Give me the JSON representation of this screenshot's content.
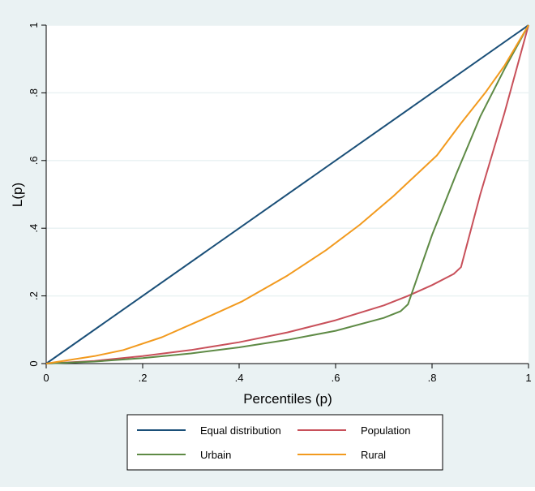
{
  "chart_data": {
    "type": "line",
    "title": "",
    "xlabel": "Percentiles (p)",
    "ylabel": "L(p)",
    "xlim": [
      0,
      1
    ],
    "ylim": [
      0,
      1
    ],
    "x_ticks": [
      0,
      0.2,
      0.4,
      0.6,
      0.8,
      1
    ],
    "x_tick_labels": [
      "0",
      ".2",
      ".4",
      ".6",
      ".8",
      "1"
    ],
    "y_ticks": [
      0,
      0.2,
      0.4,
      0.6,
      0.8,
      1
    ],
    "y_tick_labels": [
      "0",
      ".2",
      ".4",
      ".6",
      ".8",
      "1"
    ],
    "grid": true,
    "legend_position": "bottom",
    "series": [
      {
        "name": "Equal distribution",
        "color": "#1a4f78",
        "points": [
          [
            0,
            0
          ],
          [
            1,
            1
          ]
        ]
      },
      {
        "name": "Population",
        "color": "#c8505a",
        "points": [
          [
            0,
            0
          ],
          [
            0.1,
            0.008
          ],
          [
            0.2,
            0.022
          ],
          [
            0.3,
            0.04
          ],
          [
            0.4,
            0.063
          ],
          [
            0.5,
            0.092
          ],
          [
            0.6,
            0.128
          ],
          [
            0.7,
            0.172
          ],
          [
            0.75,
            0.2
          ],
          [
            0.8,
            0.232
          ],
          [
            0.845,
            0.265
          ],
          [
            0.86,
            0.285
          ],
          [
            0.9,
            0.5
          ],
          [
            0.95,
            0.74
          ],
          [
            1,
            1
          ]
        ]
      },
      {
        "name": "Urbain",
        "color": "#5e8a45",
        "points": [
          [
            0,
            0
          ],
          [
            0.1,
            0.006
          ],
          [
            0.2,
            0.016
          ],
          [
            0.3,
            0.03
          ],
          [
            0.4,
            0.048
          ],
          [
            0.5,
            0.07
          ],
          [
            0.6,
            0.097
          ],
          [
            0.7,
            0.135
          ],
          [
            0.735,
            0.155
          ],
          [
            0.75,
            0.175
          ],
          [
            0.8,
            0.38
          ],
          [
            0.85,
            0.56
          ],
          [
            0.9,
            0.73
          ],
          [
            0.95,
            0.87
          ],
          [
            1,
            1
          ]
        ]
      },
      {
        "name": "Rural",
        "color": "#f29a1e",
        "points": [
          [
            0,
            0
          ],
          [
            0.1,
            0.022
          ],
          [
            0.16,
            0.04
          ],
          [
            0.24,
            0.078
          ],
          [
            0.32,
            0.128
          ],
          [
            0.405,
            0.183
          ],
          [
            0.5,
            0.26
          ],
          [
            0.58,
            0.335
          ],
          [
            0.65,
            0.41
          ],
          [
            0.72,
            0.495
          ],
          [
            0.81,
            0.615
          ],
          [
            0.86,
            0.71
          ],
          [
            0.91,
            0.8
          ],
          [
            0.95,
            0.88
          ],
          [
            1,
            1
          ]
        ]
      }
    ],
    "legend": [
      {
        "label": "Equal distribution",
        "color": "#1a4f78"
      },
      {
        "label": "Population",
        "color": "#c8505a"
      },
      {
        "label": "Urbain",
        "color": "#5e8a45"
      },
      {
        "label": "Rural",
        "color": "#f29a1e"
      }
    ]
  },
  "colors": {
    "outer_background": "#eaf2f3",
    "plot_background": "#ffffff",
    "gridline": "#eaf2f3",
    "axis": "#000000"
  }
}
